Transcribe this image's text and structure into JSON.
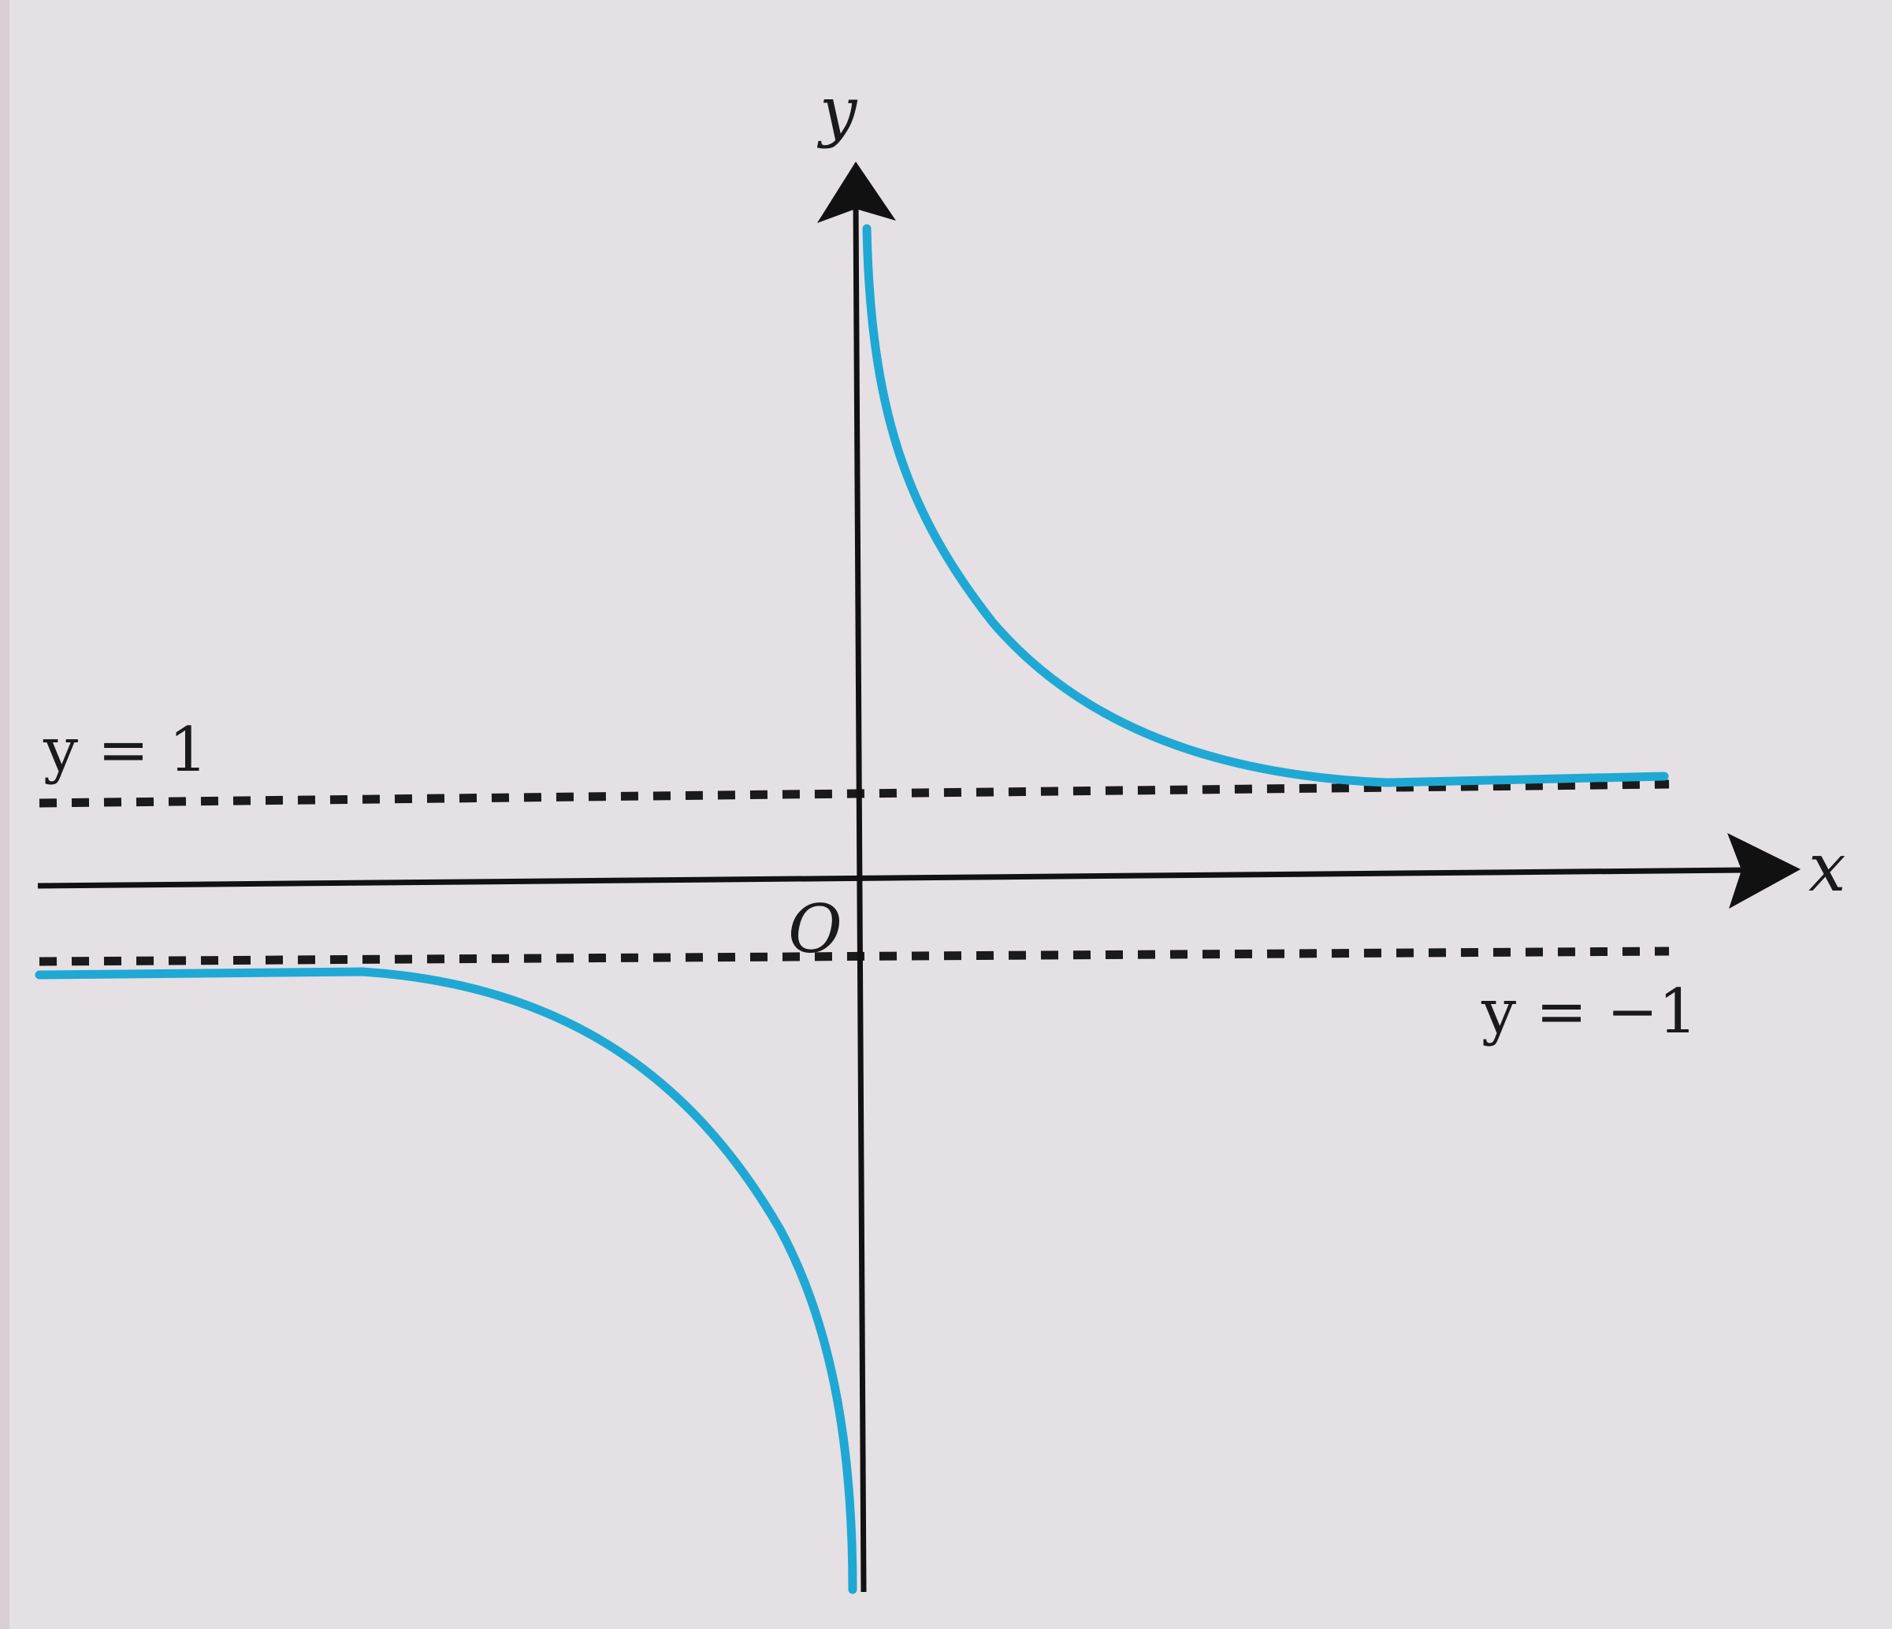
{
  "diagram": {
    "axes": {
      "x_label": "x",
      "y_label": "y",
      "origin_label": "O"
    },
    "asymptotes": [
      {
        "label": "y = 1",
        "y": 1,
        "style": "dashed"
      },
      {
        "label": "y = −1",
        "y": -1,
        "style": "dashed"
      }
    ],
    "curve": {
      "color": "#1fa8d4",
      "description": "two branches approaching y=1 as x→+∞ and y=−1 as x→−∞, vertical asymptote at x=0"
    },
    "colors": {
      "background": "#e4e0e4",
      "axis": "#111111",
      "curve": "#1fa8d4",
      "asymptote": "#1a1a1a"
    }
  }
}
